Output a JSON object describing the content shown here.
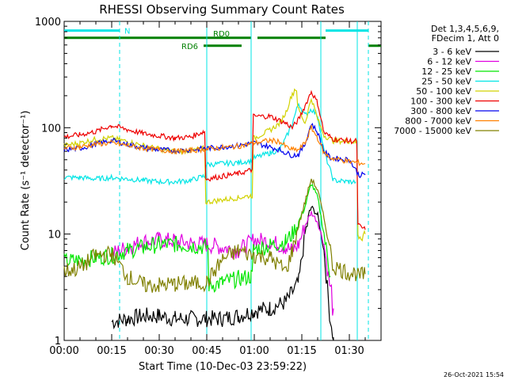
{
  "chart_data": {
    "type": "line",
    "title": "RHESSI Observing Summary Count Rates",
    "xlabel": "Start Time (10-Dec-03 23:59:22)",
    "ylabel": "Count Rate (s⁻¹ detector⁻¹)",
    "x_unit": "minutes from start",
    "x_ticks": [
      {
        "t": 0,
        "label": "00:00"
      },
      {
        "t": 15,
        "label": "00:15"
      },
      {
        "t": 30,
        "label": "00:30"
      },
      {
        "t": 45,
        "label": "00:45"
      },
      {
        "t": 60,
        "label": "01:00"
      },
      {
        "t": 75,
        "label": "01:15"
      },
      {
        "t": 90,
        "label": "01:30"
      }
    ],
    "y_ticks": [
      {
        "v": 1,
        "label": "1"
      },
      {
        "v": 10,
        "label": "10"
      },
      {
        "v": 100,
        "label": "100"
      },
      {
        "v": 1000,
        "label": "1000"
      }
    ],
    "xlim": [
      0,
      100
    ],
    "ylim": [
      1,
      1000
    ],
    "y_scale": "log",
    "legend_header": [
      "Det 1,3,4,5,6,9,",
      "FDecim 1, Att 0"
    ],
    "legend_position": "top-right",
    "timestamp": "26-Oct-2021 15:54",
    "state_bars": [
      {
        "label": "N",
        "color": "#00e5e5",
        "y": 820,
        "segments": [
          [
            0,
            17.5
          ],
          [
            82.5,
            96
          ]
        ]
      },
      {
        "label": "RD0",
        "color": "#008000",
        "y": 700,
        "segments": [
          [
            0,
            59
          ],
          [
            61,
            82.5
          ]
        ]
      },
      {
        "label": "RD6",
        "color": "#008000",
        "y": 590,
        "segments": [
          [
            44,
            56
          ],
          [
            96,
            100
          ]
        ]
      }
    ],
    "vlines": [
      {
        "t": 17.5,
        "style": "dashed",
        "color": "#00e5e5"
      },
      {
        "t": 45,
        "style": "solid",
        "color": "#00e5e5"
      },
      {
        "t": 59,
        "style": "solid",
        "color": "#00e5e5"
      },
      {
        "t": 81,
        "style": "solid",
        "color": "#00e5e5"
      },
      {
        "t": 92.5,
        "style": "solid",
        "color": "#00e5e5"
      },
      {
        "t": 96,
        "style": "dashed",
        "color": "#00e5e5"
      }
    ],
    "series": [
      {
        "name": "3 - 6 keV",
        "color": "#000000",
        "x": [
          15,
          20,
          25,
          30,
          35,
          40,
          45,
          50,
          55,
          60,
          65,
          70,
          74,
          76,
          78,
          80,
          82,
          84,
          85
        ],
        "y": [
          1.5,
          1.6,
          1.7,
          1.7,
          1.6,
          1.6,
          1.6,
          1.6,
          1.7,
          1.9,
          2.0,
          2.3,
          3.5,
          10,
          18,
          15,
          7,
          1.5,
          1
        ]
      },
      {
        "name": "6 - 12 keV",
        "color": "#e000e0",
        "x": [
          15,
          20,
          25,
          30,
          35,
          40,
          45,
          50,
          55,
          60,
          65,
          70,
          72,
          74,
          76,
          78,
          80,
          82,
          84,
          85
        ],
        "y": [
          6.5,
          7.5,
          8.5,
          8.8,
          8.6,
          8.2,
          8.0,
          7.5,
          7.0,
          8.8,
          8.5,
          7.5,
          7.0,
          8.0,
          12,
          16,
          13,
          8,
          3,
          2
        ]
      },
      {
        "name": "12 - 25 keV",
        "color": "#00e600",
        "x": [
          0,
          5,
          10,
          15,
          20,
          25,
          30,
          35,
          40,
          45,
          46,
          50,
          55,
          59,
          60,
          65,
          70,
          72,
          74,
          76,
          78,
          80,
          82,
          84
        ],
        "y": [
          5.5,
          5.7,
          6.0,
          6.3,
          7.0,
          7.5,
          8.0,
          8.0,
          7.8,
          7.5,
          3.3,
          3.5,
          3.8,
          4.0,
          7.2,
          7.8,
          8.5,
          10,
          13,
          18,
          30,
          22,
          10,
          4
        ]
      },
      {
        "name": "25 - 50 keV",
        "color": "#00e5e5",
        "x": [
          0,
          5,
          10,
          15,
          20,
          25,
          30,
          35,
          40,
          44,
          45,
          50,
          55,
          59,
          60,
          65,
          68,
          70,
          72,
          74,
          76,
          78,
          80,
          82,
          85,
          90,
          92
        ],
        "y": [
          34,
          34,
          33,
          34,
          33,
          32,
          31,
          31,
          32,
          35,
          45,
          46,
          47,
          49,
          52,
          58,
          62,
          80,
          110,
          170,
          130,
          150,
          130,
          60,
          32,
          31,
          31
        ]
      },
      {
        "name": "50 - 100 keV",
        "color": "#d2d200",
        "x": [
          0,
          5,
          10,
          15,
          20,
          25,
          30,
          35,
          40,
          44,
          45,
          50,
          55,
          59,
          60,
          65,
          68,
          70,
          72,
          73,
          74,
          76,
          78,
          80,
          82,
          85,
          90,
          92,
          93,
          95
        ],
        "y": [
          68,
          72,
          78,
          80,
          74,
          68,
          63,
          60,
          61,
          64,
          20,
          21,
          22,
          23,
          80,
          95,
          110,
          140,
          210,
          230,
          150,
          110,
          190,
          120,
          85,
          75,
          75,
          73,
          10,
          10
        ]
      },
      {
        "name": "100 - 300 keV",
        "color": "#ee0000",
        "x": [
          0,
          5,
          10,
          15,
          20,
          25,
          30,
          35,
          40,
          44,
          45,
          50,
          55,
          59,
          60,
          65,
          70,
          72,
          74,
          76,
          78,
          80,
          82,
          85,
          90,
          92,
          93,
          95
        ],
        "y": [
          82,
          86,
          92,
          105,
          96,
          88,
          84,
          80,
          82,
          92,
          33,
          35,
          37,
          40,
          128,
          128,
          110,
          100,
          120,
          160,
          220,
          170,
          90,
          78,
          75,
          75,
          12,
          11
        ]
      },
      {
        "name": "300 - 800 keV",
        "color": "#0000ee",
        "x": [
          0,
          5,
          10,
          15,
          20,
          25,
          30,
          35,
          40,
          45,
          50,
          55,
          60,
          65,
          68,
          70,
          72,
          74,
          76,
          78,
          80,
          82,
          84,
          90,
          93,
          95
        ],
        "y": [
          62,
          64,
          70,
          76,
          70,
          65,
          62,
          61,
          62,
          64,
          66,
          68,
          72,
          66,
          62,
          58,
          55,
          56,
          70,
          110,
          90,
          60,
          52,
          50,
          36,
          36
        ]
      },
      {
        "name": "800 - 7000 keV",
        "color": "#ff8000",
        "x": [
          0,
          5,
          10,
          15,
          20,
          25,
          30,
          35,
          40,
          45,
          50,
          55,
          60,
          65,
          68,
          70,
          72,
          74,
          76,
          78,
          80,
          82,
          84,
          90,
          95
        ],
        "y": [
          64,
          66,
          70,
          72,
          68,
          64,
          62,
          60,
          61,
          63,
          65,
          67,
          72,
          76,
          74,
          66,
          62,
          62,
          72,
          100,
          80,
          58,
          52,
          48,
          46
        ]
      },
      {
        "name": "7000 - 15000 keV",
        "color": "#808000",
        "x": [
          0,
          5,
          10,
          15,
          20,
          25,
          30,
          35,
          40,
          45,
          50,
          55,
          60,
          65,
          70,
          72,
          74,
          76,
          78,
          80,
          82,
          84,
          85,
          90,
          92,
          93,
          95
        ],
        "y": [
          4.5,
          4.8,
          6.3,
          6.5,
          4.0,
          3.3,
          3.3,
          3.4,
          3.4,
          3.5,
          5.8,
          7.0,
          6.3,
          6.0,
          4.5,
          7.0,
          12,
          20,
          33,
          26,
          14,
          7,
          5,
          4.3,
          4.3,
          4.0,
          4.2
        ]
      }
    ]
  }
}
